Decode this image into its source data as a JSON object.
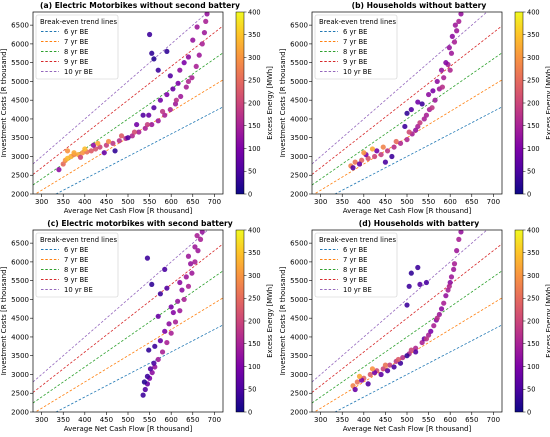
{
  "figure": {
    "legend_title": "Break-even trend lines",
    "legend_items": [
      {
        "label": "6 yr BE",
        "color": "#1f77b4"
      },
      {
        "label": "7 yr BE",
        "color": "#ff7f0e"
      },
      {
        "label": "8 yr BE",
        "color": "#2ca02c"
      },
      {
        "label": "9 yr BE",
        "color": "#d62728"
      },
      {
        "label": "10 yr BE",
        "color": "#9467bd"
      }
    ],
    "colorbar_label": "Excess Energy [MWh]",
    "colorbar_ticks": [
      0,
      50,
      100,
      150,
      200,
      250,
      300,
      350,
      400
    ]
  },
  "chart_data": [
    {
      "type": "scatter",
      "title": "(a) Electric Motorbikes without second battery",
      "xlabel": "Average Net Cash Flow [R thousand]",
      "ylabel": "Investment Costs [R thousand]",
      "xlim": [
        280,
        720
      ],
      "ylim": [
        2000,
        6850
      ],
      "xticks": [
        300,
        350,
        400,
        450,
        500,
        550,
        600,
        650,
        700
      ],
      "yticks": [
        2000,
        2500,
        3000,
        3500,
        4000,
        4500,
        5000,
        5500,
        6000,
        6500
      ],
      "colorbar": {
        "label": "Excess Energy [MWh]",
        "range": [
          0,
          400
        ]
      },
      "trend_lines": [
        {
          "name": "6 yr BE",
          "years": 6
        },
        {
          "name": "7 yr BE",
          "years": 7
        },
        {
          "name": "8 yr BE",
          "years": 8
        },
        {
          "name": "9 yr BE",
          "years": 9
        },
        {
          "name": "10 yr BE",
          "years": 10
        }
      ],
      "points": [
        [
          340,
          2650,
          120
        ],
        [
          350,
          2800,
          250
        ],
        [
          355,
          2900,
          300
        ],
        [
          360,
          2950,
          340
        ],
        [
          368,
          3000,
          330
        ],
        [
          375,
          3050,
          280
        ],
        [
          385,
          3050,
          320
        ],
        [
          395,
          3100,
          300
        ],
        [
          405,
          3120,
          260
        ],
        [
          415,
          3150,
          230
        ],
        [
          425,
          3200,
          220
        ],
        [
          435,
          3250,
          200
        ],
        [
          450,
          3300,
          190
        ],
        [
          465,
          3350,
          180
        ],
        [
          480,
          3420,
          170
        ],
        [
          495,
          3480,
          160
        ],
        [
          510,
          3550,
          160
        ],
        [
          525,
          3650,
          150
        ],
        [
          540,
          3750,
          150
        ],
        [
          555,
          3850,
          140
        ],
        [
          570,
          3950,
          140
        ],
        [
          585,
          4100,
          150
        ],
        [
          598,
          4250,
          150
        ],
        [
          610,
          4400,
          140
        ],
        [
          622,
          4600,
          140
        ],
        [
          635,
          4850,
          150
        ],
        [
          648,
          5100,
          150
        ],
        [
          658,
          5400,
          150
        ],
        [
          665,
          5700,
          140
        ],
        [
          672,
          6000,
          150
        ],
        [
          677,
          6300,
          140
        ],
        [
          680,
          6600,
          150
        ],
        [
          683,
          6800,
          130
        ],
        [
          360,
          3150,
          300
        ],
        [
          375,
          3100,
          320
        ],
        [
          390,
          2980,
          200
        ],
        [
          420,
          3300,
          120
        ],
        [
          445,
          3100,
          80
        ],
        [
          470,
          3150,
          30
        ],
        [
          500,
          3500,
          60
        ],
        [
          520,
          3850,
          90
        ],
        [
          535,
          4100,
          60
        ],
        [
          548,
          4100,
          80
        ],
        [
          560,
          4300,
          60
        ],
        [
          575,
          4500,
          90
        ],
        [
          590,
          4650,
          100
        ],
        [
          604,
          4800,
          80
        ],
        [
          616,
          4950,
          100
        ],
        [
          620,
          5300,
          120
        ],
        [
          630,
          5500,
          100
        ],
        [
          550,
          6250,
          40
        ],
        [
          555,
          5750,
          30
        ],
        [
          560,
          5600,
          20
        ],
        [
          590,
          5800,
          30
        ],
        [
          570,
          5300,
          40
        ],
        [
          598,
          5150,
          60
        ],
        [
          640,
          5650,
          120
        ],
        [
          650,
          6100,
          130
        ],
        [
          660,
          6450,
          140
        ],
        [
          400,
          3200,
          340
        ],
        [
          430,
          3350,
          320
        ],
        [
          455,
          3400,
          290
        ],
        [
          485,
          3550,
          230
        ],
        [
          515,
          3650,
          210
        ],
        [
          545,
          3850,
          190
        ],
        [
          580,
          4200,
          180
        ],
        [
          612,
          4500,
          170
        ],
        [
          640,
          5000,
          160
        ]
      ]
    },
    {
      "type": "scatter",
      "title": "(b) Households without battery",
      "xlabel": "Average Net Cash Flow [R thousand]",
      "ylabel": "Investment Costs [R thousand]",
      "xlim": [
        280,
        720
      ],
      "ylim": [
        2000,
        6850
      ],
      "xticks": [
        300,
        350,
        400,
        450,
        500,
        550,
        600,
        650,
        700
      ],
      "yticks": [
        2000,
        2500,
        3000,
        3500,
        4000,
        4500,
        5000,
        5500,
        6000,
        6500
      ],
      "colorbar": {
        "label": "Excess Energy [MWh]",
        "range": [
          0,
          400
        ]
      },
      "trend_lines": [
        {
          "name": "6 yr BE",
          "years": 6
        },
        {
          "name": "7 yr BE",
          "years": 7
        },
        {
          "name": "8 yr BE",
          "years": 8
        },
        {
          "name": "9 yr BE",
          "years": 9
        },
        {
          "name": "10 yr BE",
          "years": 10
        }
      ],
      "points": [
        [
          370,
          2750,
          280
        ],
        [
          380,
          2850,
          260
        ],
        [
          395,
          2900,
          240
        ],
        [
          410,
          2950,
          220
        ],
        [
          425,
          3000,
          200
        ],
        [
          440,
          3050,
          190
        ],
        [
          455,
          3150,
          180
        ],
        [
          470,
          3250,
          170
        ],
        [
          485,
          3350,
          160
        ],
        [
          500,
          3450,
          160
        ],
        [
          512,
          3600,
          150
        ],
        [
          525,
          3800,
          150
        ],
        [
          540,
          4000,
          150
        ],
        [
          552,
          4250,
          150
        ],
        [
          565,
          4500,
          140
        ],
        [
          575,
          4800,
          140
        ],
        [
          585,
          5100,
          150
        ],
        [
          595,
          5450,
          150
        ],
        [
          603,
          5750,
          140
        ],
        [
          610,
          6050,
          150
        ],
        [
          615,
          6350,
          140
        ],
        [
          620,
          6600,
          150
        ],
        [
          625,
          6800,
          130
        ],
        [
          375,
          2700,
          60
        ],
        [
          390,
          2800,
          80
        ],
        [
          405,
          3050,
          100
        ],
        [
          430,
          3150,
          90
        ],
        [
          450,
          2850,
          50
        ],
        [
          465,
          3000,
          40
        ],
        [
          495,
          3800,
          40
        ],
        [
          500,
          4150,
          30
        ],
        [
          510,
          4250,
          60
        ],
        [
          525,
          4450,
          90
        ],
        [
          535,
          4400,
          40
        ],
        [
          550,
          4650,
          120
        ],
        [
          560,
          4750,
          100
        ],
        [
          570,
          5000,
          120
        ],
        [
          580,
          5300,
          130
        ],
        [
          590,
          5500,
          110
        ],
        [
          598,
          5900,
          130
        ],
        [
          605,
          6200,
          120
        ],
        [
          612,
          6500,
          140
        ],
        [
          400,
          3100,
          300
        ],
        [
          420,
          3200,
          320
        ],
        [
          445,
          3250,
          280
        ],
        [
          475,
          3400,
          250
        ],
        [
          505,
          3650,
          210
        ],
        [
          530,
          3900,
          190
        ],
        [
          558,
          4300,
          180
        ],
        [
          582,
          4850,
          170
        ],
        [
          600,
          5300,
          160
        ],
        [
          545,
          4100,
          150
        ],
        [
          520,
          3700,
          130
        ]
      ]
    },
    {
      "type": "scatter",
      "title": "(c) Electric motorbikes with second battery",
      "xlabel": "Average Net Cash Flow [R thousand]",
      "ylabel": "Investment Costs [R thousand]",
      "xlim": [
        280,
        720
      ],
      "ylim": [
        2000,
        6850
      ],
      "xticks": [
        300,
        350,
        400,
        450,
        500,
        550,
        600,
        650,
        700
      ],
      "yticks": [
        2000,
        2500,
        3000,
        3500,
        4000,
        4500,
        5000,
        5500,
        6000,
        6500
      ],
      "colorbar": {
        "label": "Excess Energy [MWh]",
        "range": [
          0,
          400
        ]
      },
      "trend_lines": [
        {
          "name": "6 yr BE",
          "years": 6
        },
        {
          "name": "7 yr BE",
          "years": 7
        },
        {
          "name": "8 yr BE",
          "years": 8
        },
        {
          "name": "9 yr BE",
          "years": 9
        },
        {
          "name": "10 yr BE",
          "years": 10
        }
      ],
      "points": [
        [
          535,
          2450,
          40
        ],
        [
          540,
          2600,
          60
        ],
        [
          545,
          2750,
          80
        ],
        [
          550,
          2900,
          100
        ],
        [
          556,
          3050,
          120
        ],
        [
          562,
          3200,
          130
        ],
        [
          570,
          3400,
          140
        ],
        [
          580,
          3600,
          150
        ],
        [
          590,
          3850,
          150
        ],
        [
          600,
          4100,
          150
        ],
        [
          610,
          4400,
          150
        ],
        [
          620,
          4700,
          140
        ],
        [
          630,
          5000,
          150
        ],
        [
          640,
          5350,
          150
        ],
        [
          648,
          5700,
          140
        ],
        [
          655,
          6000,
          150
        ],
        [
          662,
          6300,
          140
        ],
        [
          668,
          6600,
          150
        ],
        [
          672,
          6800,
          130
        ],
        [
          538,
          2800,
          20
        ],
        [
          545,
          2950,
          40
        ],
        [
          552,
          3150,
          60
        ],
        [
          560,
          3300,
          50
        ],
        [
          548,
          3650,
          30
        ],
        [
          562,
          3750,
          40
        ],
        [
          575,
          3900,
          80
        ],
        [
          585,
          4150,
          100
        ],
        [
          595,
          4350,
          120
        ],
        [
          605,
          4650,
          110
        ],
        [
          615,
          4950,
          130
        ],
        [
          625,
          5250,
          120
        ],
        [
          635,
          5600,
          140
        ],
        [
          645,
          5950,
          130
        ],
        [
          655,
          6400,
          140
        ],
        [
          545,
          6100,
          40
        ],
        [
          555,
          5400,
          30
        ],
        [
          575,
          5150,
          40
        ],
        [
          590,
          5300,
          60
        ],
        [
          585,
          5800,
          50
        ],
        [
          570,
          4550,
          80
        ],
        [
          600,
          4800,
          100
        ],
        [
          620,
          5450,
          120
        ],
        [
          640,
          6150,
          140
        ],
        [
          660,
          6700,
          150
        ]
      ]
    },
    {
      "type": "scatter",
      "title": "(d) Households with battery",
      "xlabel": "Average Net Cash Flow [R thousand]",
      "ylabel": "Investment Costs [R thousand]",
      "xlim": [
        280,
        720
      ],
      "ylim": [
        2000,
        6850
      ],
      "xticks": [
        300,
        350,
        400,
        450,
        500,
        550,
        600,
        650,
        700
      ],
      "yticks": [
        2000,
        2500,
        3000,
        3500,
        4000,
        4500,
        5000,
        5500,
        6000,
        6500
      ],
      "colorbar": {
        "label": "Excess Energy [MWh]",
        "range": [
          0,
          400
        ]
      },
      "trend_lines": [
        {
          "name": "6 yr BE",
          "years": 6
        },
        {
          "name": "7 yr BE",
          "years": 7
        },
        {
          "name": "8 yr BE",
          "years": 8
        },
        {
          "name": "9 yr BE",
          "years": 9
        },
        {
          "name": "10 yr BE",
          "years": 10
        }
      ],
      "points": [
        [
          375,
          2700,
          280
        ],
        [
          385,
          2800,
          260
        ],
        [
          400,
          2900,
          240
        ],
        [
          415,
          3000,
          230
        ],
        [
          430,
          3100,
          210
        ],
        [
          445,
          3150,
          200
        ],
        [
          460,
          3250,
          190
        ],
        [
          475,
          3350,
          180
        ],
        [
          490,
          3450,
          170
        ],
        [
          505,
          3550,
          160
        ],
        [
          520,
          3700,
          160
        ],
        [
          535,
          3850,
          150
        ],
        [
          550,
          4050,
          150
        ],
        [
          562,
          4300,
          150
        ],
        [
          575,
          4600,
          140
        ],
        [
          585,
          4900,
          150
        ],
        [
          595,
          5250,
          150
        ],
        [
          603,
          5600,
          140
        ],
        [
          610,
          5950,
          150
        ],
        [
          615,
          6300,
          140
        ],
        [
          620,
          6600,
          150
        ],
        [
          625,
          6800,
          130
        ],
        [
          380,
          2600,
          80
        ],
        [
          395,
          2850,
          100
        ],
        [
          410,
          2750,
          60
        ],
        [
          425,
          3050,
          90
        ],
        [
          440,
          3000,
          70
        ],
        [
          455,
          3100,
          60
        ],
        [
          470,
          3200,
          50
        ],
        [
          485,
          3300,
          40
        ],
        [
          500,
          3500,
          30
        ],
        [
          520,
          3600,
          60
        ],
        [
          540,
          3950,
          80
        ],
        [
          555,
          4150,
          100
        ],
        [
          568,
          4450,
          110
        ],
        [
          580,
          4750,
          120
        ],
        [
          590,
          5100,
          130
        ],
        [
          600,
          5450,
          120
        ],
        [
          608,
          5800,
          140
        ],
        [
          505,
          5350,
          40
        ],
        [
          510,
          5700,
          30
        ],
        [
          525,
          5850,
          40
        ],
        [
          530,
          5400,
          60
        ],
        [
          545,
          5450,
          50
        ],
        [
          500,
          4850,
          40
        ],
        [
          390,
          2950,
          320
        ],
        [
          420,
          3150,
          300
        ],
        [
          450,
          3250,
          260
        ],
        [
          480,
          3400,
          230
        ],
        [
          510,
          3650,
          200
        ],
        [
          545,
          3950,
          180
        ],
        [
          570,
          4500,
          170
        ],
        [
          598,
          5350,
          160
        ]
      ]
    }
  ]
}
